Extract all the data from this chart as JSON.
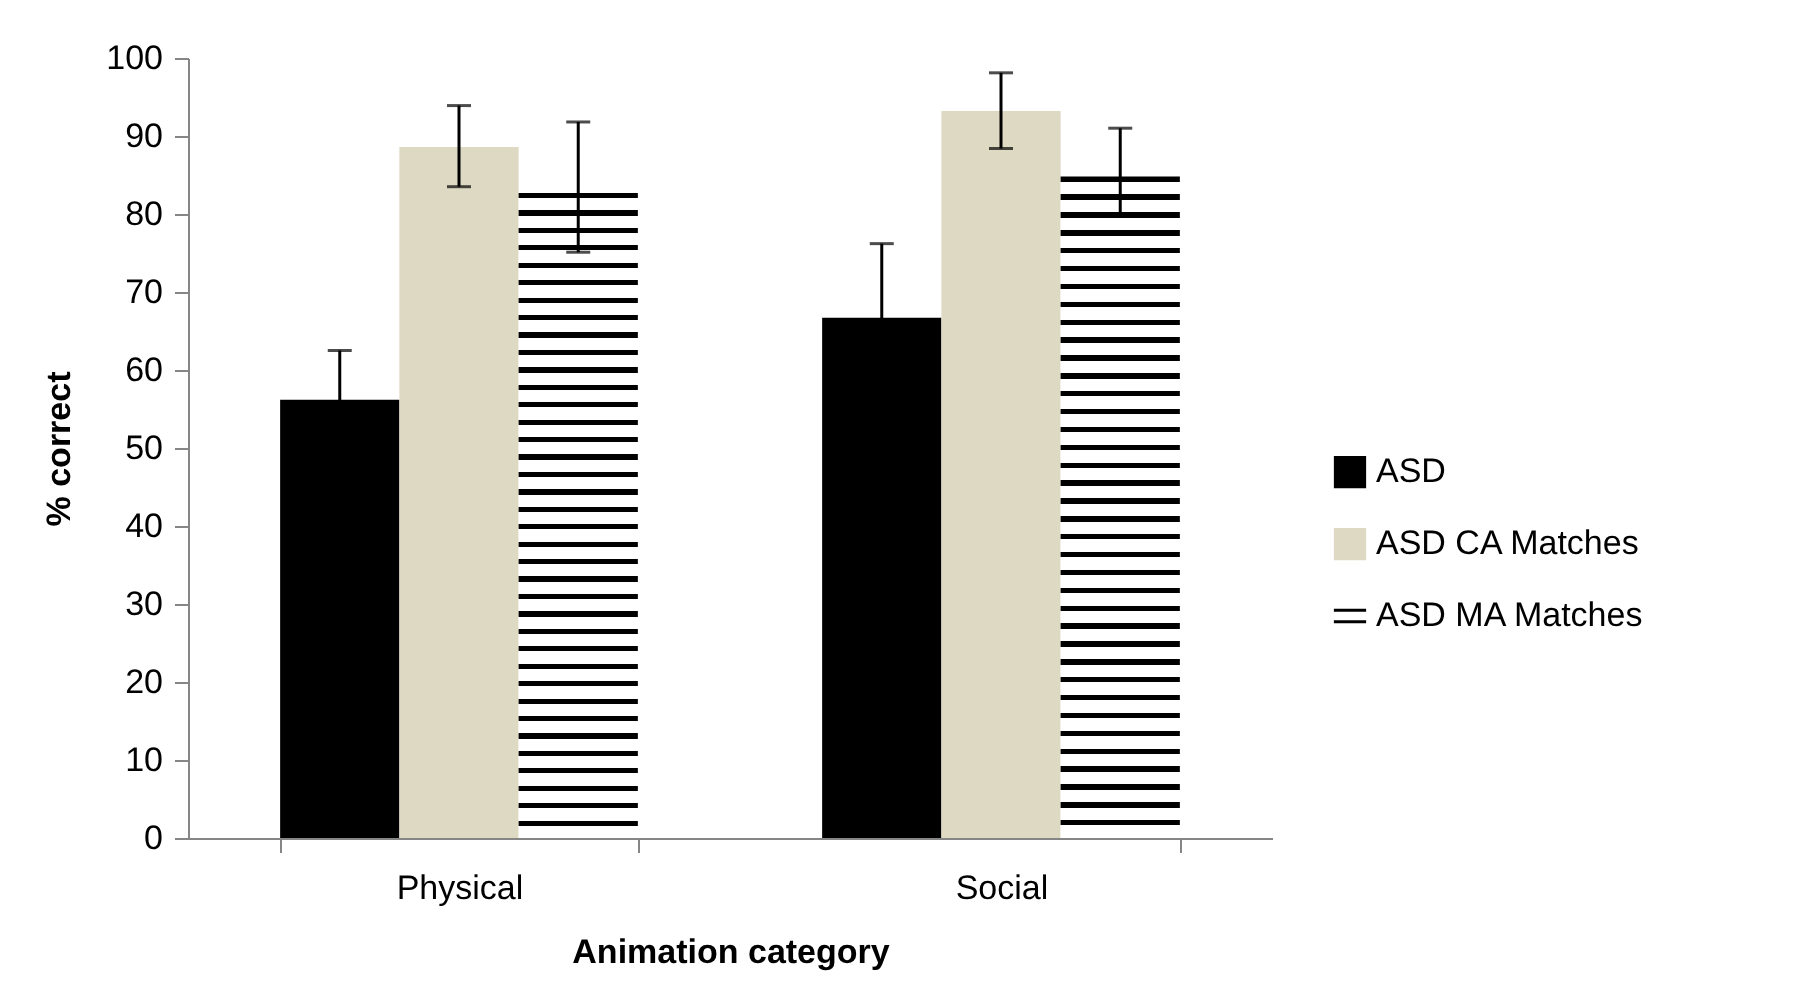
{
  "chart_data": {
    "type": "bar",
    "xlabel": "Animation category",
    "ylabel": "%  correct",
    "categories": [
      "Physical",
      "Social"
    ],
    "series": [
      {
        "name": "ASD",
        "color": "#000000",
        "values": [
          56.2,
          66.7
        ],
        "errors": [
          6.3,
          9.5
        ]
      },
      {
        "name": "ASD CA Matches",
        "color": "#ddd9c3",
        "values": [
          88.6,
          93.2
        ],
        "errors": [
          [
            83.5,
            93.9
          ],
          [
            88.4,
            98.1
          ]
        ]
      },
      {
        "name": "ASD MA Matches",
        "color": "#000000",
        "values": [
          82.7,
          84.8
        ],
        "errors": [
          [
            75.1,
            91.8
          ],
          [
            79.8,
            91.0
          ]
        ]
      }
    ],
    "ylim": [
      0,
      100
    ],
    "yticks": [
      0,
      10,
      20,
      30,
      40,
      50,
      60,
      70,
      80,
      90,
      100
    ],
    "grid": false,
    "legend": "right"
  }
}
